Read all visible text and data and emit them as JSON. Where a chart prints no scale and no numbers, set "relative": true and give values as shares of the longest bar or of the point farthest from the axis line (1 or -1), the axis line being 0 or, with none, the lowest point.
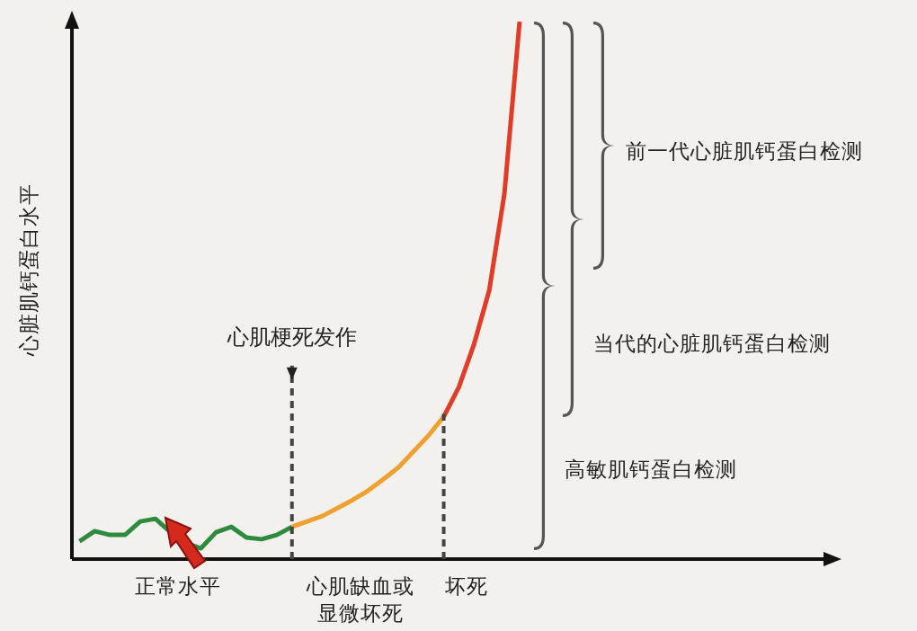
{
  "chart_data": {
    "type": "line",
    "relative": true,
    "ylabel": "心脏肌钙蛋白水平",
    "marker": "none",
    "line_style": "solid",
    "categories": [
      null,
      null,
      null,
      null,
      null,
      null,
      null,
      null,
      null,
      null,
      null,
      null,
      null,
      null,
      null,
      null,
      null,
      null,
      null,
      null,
      null,
      null,
      null,
      null,
      null,
      null,
      null,
      null,
      null,
      null,
      null,
      null,
      null,
      null,
      null,
      null,
      null,
      null,
      null,
      null,
      null,
      null,
      null,
      null,
      null,
      null,
      null,
      null,
      null,
      null
    ],
    "series": [
      {
        "color": "#2e8b3e",
        "values": [
          0.033,
          0.052,
          0.045,
          0.045,
          0.07,
          0.075,
          0.05,
          0.03,
          0.02,
          0.05,
          0.06,
          0.04,
          0.037,
          0.045,
          0.06,
          null,
          null,
          null,
          null,
          null,
          null,
          null,
          null,
          null,
          null,
          null,
          null,
          null,
          null,
          null,
          null,
          null,
          null,
          null,
          null,
          null,
          null,
          null,
          null,
          null,
          null,
          null,
          null,
          null,
          null,
          null,
          null,
          null,
          null,
          null
        ]
      },
      {
        "color": "#f0a030",
        "values": [
          null,
          null,
          null,
          null,
          null,
          null,
          null,
          null,
          null,
          null,
          null,
          null,
          null,
          null,
          0.06,
          0.07,
          0.08,
          0.095,
          0.11,
          0.127,
          0.148,
          0.17,
          0.2,
          0.23,
          0.265,
          null,
          null,
          null,
          null,
          null,
          null,
          null,
          null,
          null,
          null,
          null,
          null,
          null,
          null,
          null,
          null,
          null,
          null,
          null,
          null,
          null,
          null,
          null,
          null,
          null
        ]
      },
      {
        "color": "#e03c28",
        "values": [
          null,
          null,
          null,
          null,
          null,
          null,
          null,
          null,
          null,
          null,
          null,
          null,
          null,
          null,
          null,
          null,
          null,
          null,
          null,
          null,
          null,
          null,
          null,
          null,
          0.265,
          0.32,
          0.4,
          0.5,
          0.68,
          1.0,
          null,
          null,
          null,
          null,
          null,
          null,
          null,
          null,
          null,
          null,
          null,
          null,
          null,
          null,
          null,
          null,
          null,
          null,
          null,
          null
        ]
      }
    ],
    "annotations": [
      "心肌梗死发作",
      "正常水平",
      "心肌缺血或显微坏死",
      "坏死",
      "前一代心脏肌钙蛋白检测",
      "当代的心脏肌钙蛋白检测",
      "高敏肌钙蛋白检测"
    ]
  }
}
